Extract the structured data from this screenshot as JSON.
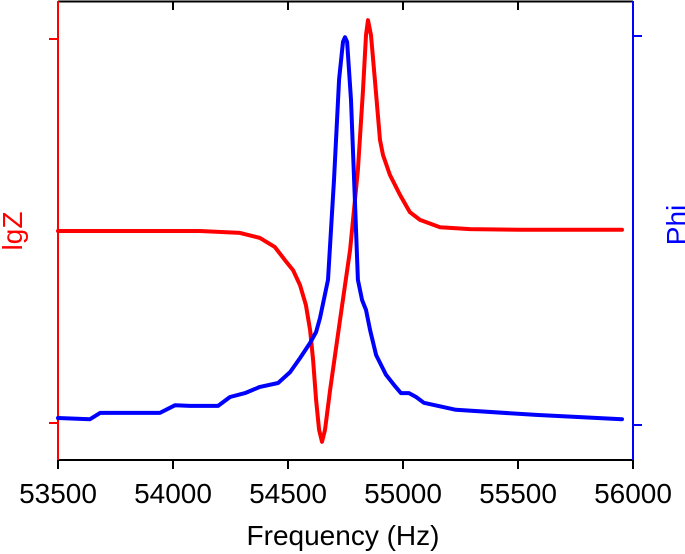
{
  "chart_data": {
    "type": "line",
    "title": "",
    "xlabel": "Frequency (Hz)",
    "ylabel_left": "lgZ",
    "ylabel_right": "Phi",
    "xlim": [
      53500,
      56000
    ],
    "x_ticks": [
      53500,
      54000,
      54500,
      55000,
      55500,
      56000
    ],
    "x_tick_labels": [
      "53500",
      "54000",
      "54500",
      "55000",
      "55500",
      "56000"
    ],
    "y_left_ticks_note": "two unlabeled ticks; values normalized 0 (lower tick) to 1 (upper tick)",
    "y_right_ticks_note": "two unlabeled ticks; values normalized 0 (lower tick) to 1 (upper tick)",
    "grid": false,
    "legend": null,
    "colors": {
      "lgZ": "#ff0000",
      "Phi": "#0000ff",
      "axis": "#000000"
    },
    "series": [
      {
        "name": "lgZ",
        "axis": "left",
        "color": "#ff0000",
        "x": [
          53500,
          54117,
          54291,
          54378,
          54443,
          54487,
          54522,
          54552,
          54578,
          54596,
          54609,
          54622,
          54635,
          54648,
          54661,
          54683,
          54726,
          54770,
          54804,
          54826,
          54839,
          54848,
          54861,
          54878,
          54900,
          54913,
          54943,
          54987,
          55030,
          55074,
          55161,
          55291,
          55509,
          55952
        ],
        "y": [
          0.5,
          0.5,
          0.495,
          0.482,
          0.458,
          0.424,
          0.398,
          0.359,
          0.307,
          0.242,
          0.164,
          0.06,
          -0.018,
          -0.049,
          -0.018,
          0.086,
          0.268,
          0.451,
          0.659,
          0.867,
          1.01,
          1.049,
          1.01,
          0.893,
          0.737,
          0.698,
          0.646,
          0.594,
          0.549,
          0.529,
          0.51,
          0.505,
          0.503,
          0.503
        ]
      },
      {
        "name": "Phi",
        "axis": "right",
        "color": "#0000ff",
        "x": [
          53500,
          53639,
          53683,
          53726,
          53813,
          53943,
          54009,
          54074,
          54196,
          54248,
          54313,
          54378,
          54457,
          54509,
          54552,
          54596,
          54622,
          54639,
          54674,
          54700,
          54722,
          54739,
          54748,
          54757,
          54774,
          54791,
          54804,
          54822,
          54839,
          54857,
          54883,
          54926,
          54961,
          54991,
          55026,
          55057,
          55091,
          55230,
          55578,
          55952
        ],
        "y": [
          0.018,
          0.015,
          0.031,
          0.031,
          0.031,
          0.031,
          0.051,
          0.049,
          0.049,
          0.072,
          0.082,
          0.098,
          0.108,
          0.136,
          0.172,
          0.211,
          0.239,
          0.275,
          0.373,
          0.63,
          0.889,
          0.985,
          0.997,
          0.985,
          0.836,
          0.578,
          0.373,
          0.321,
          0.296,
          0.244,
          0.18,
          0.129,
          0.103,
          0.082,
          0.082,
          0.072,
          0.057,
          0.039,
          0.026,
          0.015
        ]
      }
    ]
  }
}
